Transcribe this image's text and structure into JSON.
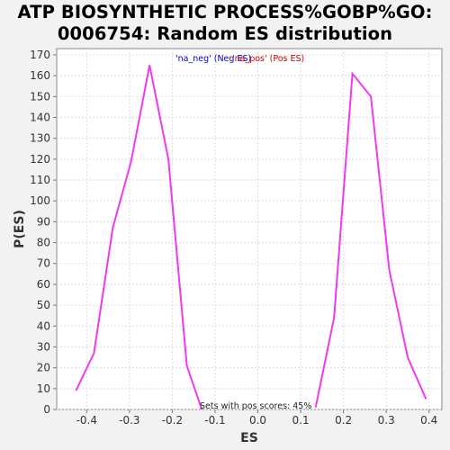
{
  "title_line1": "ATP BIOSYNTHETIC PROCESS%GOBP%GO:",
  "title_line2": "0006754: Random ES distribution",
  "chart_data": {
    "type": "line",
    "xlabel": "ES",
    "ylabel": "P(ES)",
    "xlim": [
      -0.47,
      0.43
    ],
    "ylim": [
      0,
      173
    ],
    "xticks": [
      "-0.4",
      "-0.3",
      "-0.2",
      "-0.1",
      "0.0",
      "0.1",
      "0.2",
      "0.3",
      "0.4"
    ],
    "xtick_values": [
      -0.4,
      -0.3,
      -0.2,
      -0.1,
      0.0,
      0.1,
      0.2,
      0.3,
      0.4
    ],
    "yticks": [
      "0",
      "10",
      "20",
      "30",
      "40",
      "50",
      "60",
      "70",
      "80",
      "90",
      "100",
      "110",
      "120",
      "130",
      "140",
      "150",
      "160",
      "170"
    ],
    "ytick_values": [
      0,
      10,
      20,
      30,
      40,
      50,
      60,
      70,
      80,
      90,
      100,
      110,
      120,
      130,
      140,
      150,
      160,
      170
    ],
    "grid": true,
    "legend_position": "top",
    "legend": [
      {
        "label": "'na_neg' (Neg ES)",
        "color": "#0000cc"
      },
      {
        "label": "'na_pos' (Pos ES)",
        "color": "#cc0000"
      }
    ],
    "annotation": "Sets with pos scores: 45%",
    "line_color": "#ee3bee",
    "series": [
      {
        "x": [
          -0.425,
          -0.383,
          -0.339,
          -0.296,
          -0.253,
          -0.209,
          -0.166,
          -0.131
        ],
        "y": [
          9,
          27,
          87,
          119,
          165,
          120,
          21,
          0
        ]
      },
      {
        "x": [
          0.135,
          0.178,
          0.221,
          0.264,
          0.307,
          0.35,
          0.393
        ],
        "y": [
          1,
          44,
          161,
          150,
          67,
          25,
          5
        ]
      }
    ]
  }
}
